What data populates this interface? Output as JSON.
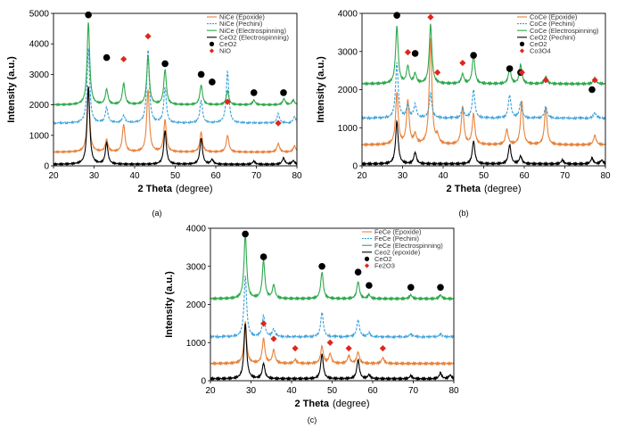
{
  "chart_data": [
    {
      "type": "line",
      "panel_label": "(a)",
      "xlabel_main": "2 Theta",
      "xlabel_unit": "(degree)",
      "ylabel": "Intensity (a.u.)",
      "xlim": [
        20,
        80
      ],
      "ylim": [
        0,
        5000
      ],
      "xticks": [
        20,
        30,
        40,
        50,
        60,
        70,
        80
      ],
      "yticks": [
        0,
        1000,
        2000,
        3000,
        4000,
        5000
      ],
      "legend_position": "top-right",
      "series": [
        {
          "name": "NiCe (Epoxide)",
          "color": "#e8823a",
          "dash": "solid",
          "baseline": 450,
          "peaks": [
            [
              28.6,
              2050
            ],
            [
              33.1,
              400
            ],
            [
              37.3,
              900
            ],
            [
              43.3,
              2050
            ],
            [
              47.5,
              1050
            ],
            [
              56.4,
              650
            ],
            [
              62.9,
              550
            ],
            [
              75.4,
              280
            ],
            [
              79.4,
              200
            ]
          ]
        },
        {
          "name": "NiCe (Pechini)",
          "color": "#3aa0d8",
          "dash": "dashed",
          "baseline": 1400,
          "peaks": [
            [
              28.6,
              2450
            ],
            [
              33.1,
              500
            ],
            [
              37.3,
              250
            ],
            [
              43.3,
              2400
            ],
            [
              47.5,
              1150
            ],
            [
              56.4,
              750
            ],
            [
              62.9,
              1700
            ],
            [
              75.4,
              300
            ],
            [
              79.4,
              200
            ]
          ]
        },
        {
          "name": "NiCe (Electrospinning)",
          "color": "#2ea84c",
          "dash": "solid",
          "baseline": 2000,
          "peaks": [
            [
              28.6,
              2700
            ],
            [
              33.1,
              500
            ],
            [
              37.3,
              700
            ],
            [
              43.3,
              1600
            ],
            [
              47.5,
              1150
            ],
            [
              56.4,
              650
            ],
            [
              62.9,
              450
            ],
            [
              69.4,
              150
            ],
            [
              76.8,
              200
            ],
            [
              79.1,
              150
            ]
          ]
        },
        {
          "name": "CeO2 (Electrospinning)",
          "color": "#000000",
          "dash": "solid",
          "baseline": 50,
          "peaks": [
            [
              28.6,
              2550
            ],
            [
              33.1,
              700
            ],
            [
              47.5,
              1100
            ],
            [
              56.4,
              850
            ],
            [
              59.1,
              150
            ],
            [
              69.4,
              100
            ],
            [
              76.7,
              200
            ],
            [
              79.1,
              120
            ]
          ]
        }
      ],
      "markers": [
        {
          "name": "CeO2",
          "symbol": "circle",
          "color": "#000000",
          "points": [
            [
              28.6,
              4950
            ],
            [
              33.1,
              3550
            ],
            [
              47.5,
              3350
            ],
            [
              56.4,
              3000
            ],
            [
              59.1,
              2750
            ],
            [
              69.4,
              2400
            ],
            [
              76.7,
              2400
            ]
          ]
        },
        {
          "name": "NiO",
          "symbol": "diamond",
          "color": "#e0261b",
          "points": [
            [
              37.3,
              3500
            ],
            [
              43.3,
              4250
            ],
            [
              62.9,
              2100
            ],
            [
              75.4,
              1400
            ]
          ]
        }
      ]
    },
    {
      "type": "line",
      "panel_label": "(b)",
      "xlabel_main": "2 Theta",
      "xlabel_unit": "(degree)",
      "ylabel": "Intensity (a.u.)",
      "xlim": [
        20,
        80
      ],
      "ylim": [
        0,
        4000
      ],
      "xticks": [
        20,
        30,
        40,
        50,
        60,
        70,
        80
      ],
      "yticks": [
        0,
        1000,
        2000,
        3000,
        4000
      ],
      "legend_position": "top-right",
      "series": [
        {
          "name": "CoCe (Epoxide)",
          "color": "#e8823a",
          "dash": "solid",
          "baseline": 550,
          "peaks": [
            [
              28.6,
              1350
            ],
            [
              31.3,
              1150
            ],
            [
              33.1,
              250
            ],
            [
              36.9,
              2800
            ],
            [
              38.6,
              200
            ],
            [
              44.8,
              1000
            ],
            [
              47.5,
              800
            ],
            [
              55.7,
              400
            ],
            [
              59.4,
              1150
            ],
            [
              65.3,
              1000
            ],
            [
              77.4,
              250
            ]
          ]
        },
        {
          "name": "CoCe (Pechini)",
          "color": "#3aa0d8",
          "dash": "dashed",
          "baseline": 1250,
          "peaks": [
            [
              28.6,
              1450
            ],
            [
              31.3,
              350
            ],
            [
              33.1,
              350
            ],
            [
              36.9,
              650
            ],
            [
              44.8,
              250
            ],
            [
              47.5,
              750
            ],
            [
              56.4,
              600
            ],
            [
              59.1,
              400
            ],
            [
              65.3,
              300
            ],
            [
              77.4,
              150
            ]
          ]
        },
        {
          "name": "CoCe (Electrospinning)",
          "color": "#2ea84c",
          "dash": "solid",
          "baseline": 2150,
          "peaks": [
            [
              28.6,
              1500
            ],
            [
              31.3,
              450
            ],
            [
              33.1,
              250
            ],
            [
              36.9,
              1550
            ],
            [
              44.8,
              250
            ],
            [
              47.5,
              750
            ],
            [
              56.4,
              400
            ],
            [
              59.1,
              500
            ],
            [
              65.3,
              200
            ],
            [
              77.4,
              150
            ]
          ]
        },
        {
          "name": "CeO2 (Pechini)",
          "color": "#000000",
          "dash": "solid",
          "baseline": 50,
          "peaks": [
            [
              28.6,
              1120
            ],
            [
              33.1,
              300
            ],
            [
              47.5,
              600
            ],
            [
              56.4,
              500
            ],
            [
              59.1,
              200
            ],
            [
              69.4,
              100
            ],
            [
              76.7,
              150
            ],
            [
              79.1,
              100
            ]
          ]
        }
      ],
      "markers": [
        {
          "name": "CeO2",
          "symbol": "circle",
          "color": "#000000",
          "points": [
            [
              28.6,
              3950
            ],
            [
              33.1,
              2950
            ],
            [
              47.5,
              2900
            ],
            [
              56.4,
              2550
            ],
            [
              59.1,
              2450
            ],
            [
              76.7,
              2000
            ]
          ]
        },
        {
          "name": "Co3O4",
          "symbol": "diamond",
          "color": "#e0261b",
          "points": [
            [
              31.3,
              2980
            ],
            [
              36.9,
              3900
            ],
            [
              38.6,
              2450
            ],
            [
              44.8,
              2700
            ],
            [
              59.4,
              2450
            ],
            [
              65.3,
              2250
            ],
            [
              77.4,
              2250
            ]
          ]
        }
      ]
    },
    {
      "type": "line",
      "panel_label": "(c)",
      "xlabel_main": "2 Theta",
      "xlabel_unit": "(degree)",
      "ylabel": "Intensity (a.u.)",
      "xlim": [
        20,
        80
      ],
      "ylim": [
        0,
        4000
      ],
      "xticks": [
        20,
        30,
        40,
        50,
        60,
        70,
        80
      ],
      "yticks": [
        0,
        1000,
        2000,
        3000,
        4000
      ],
      "legend_position": "top-right",
      "series": [
        {
          "name": "FeCe (Epoxide)",
          "color": "#e8823a",
          "dash": "solid",
          "baseline": 450,
          "peaks": [
            [
              28.6,
              1100
            ],
            [
              33.1,
              650
            ],
            [
              35.6,
              350
            ],
            [
              40.9,
              100
            ],
            [
              47.5,
              450
            ],
            [
              49.5,
              250
            ],
            [
              54.1,
              200
            ],
            [
              56.4,
              300
            ],
            [
              62.5,
              150
            ]
          ]
        },
        {
          "name": "FeCe (Pechini)",
          "color": "#3aa0d8",
          "dash": "dashed",
          "baseline": 1150,
          "peaks": [
            [
              28.6,
              1600
            ],
            [
              33.1,
              550
            ],
            [
              35.6,
              200
            ],
            [
              47.5,
              650
            ],
            [
              56.4,
              450
            ],
            [
              59.1,
              100
            ],
            [
              69.4,
              80
            ],
            [
              76.7,
              80
            ]
          ]
        },
        {
          "name": "FeCe (Electrospinning)",
          "color": "#2ea84c",
          "dash": "solid",
          "baseline": 2150,
          "peaks": [
            [
              28.6,
              1700
            ],
            [
              33.1,
              1000
            ],
            [
              35.6,
              350
            ],
            [
              47.5,
              700
            ],
            [
              56.4,
              450
            ],
            [
              59.1,
              100
            ],
            [
              69.4,
              100
            ],
            [
              76.7,
              100
            ]
          ]
        },
        {
          "name": "Ceo2 (epoxide)",
          "color": "#000000",
          "dash": "solid",
          "baseline": 50,
          "peaks": [
            [
              28.6,
              1450
            ],
            [
              33.1,
              400
            ],
            [
              47.5,
              650
            ],
            [
              56.4,
              500
            ],
            [
              59.1,
              100
            ],
            [
              69.4,
              80
            ],
            [
              76.7,
              150
            ],
            [
              79.1,
              100
            ]
          ]
        }
      ],
      "markers": [
        {
          "name": "CeO2",
          "symbol": "circle",
          "color": "#000000",
          "points": [
            [
              28.6,
              3850
            ],
            [
              33.1,
              3250
            ],
            [
              47.5,
              3000
            ],
            [
              56.4,
              2850
            ],
            [
              59.1,
              2500
            ],
            [
              69.4,
              2450
            ],
            [
              76.7,
              2450
            ]
          ]
        },
        {
          "name": "Fe2O3",
          "symbol": "diamond",
          "color": "#e0261b",
          "points": [
            [
              33.1,
              1500
            ],
            [
              35.6,
              1100
            ],
            [
              40.9,
              850
            ],
            [
              49.5,
              1000
            ],
            [
              54.1,
              850
            ],
            [
              62.5,
              850
            ]
          ]
        }
      ]
    }
  ]
}
